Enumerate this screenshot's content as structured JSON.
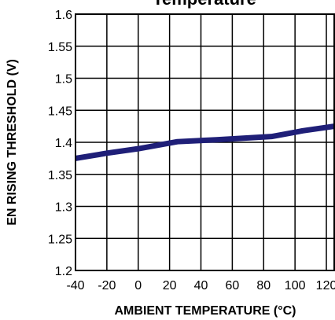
{
  "chart_data": {
    "type": "line",
    "title": "Temperature",
    "xlabel": "AMBIENT TEMPERATURE (°C)",
    "ylabel": "EN RISING THRESHOLD (V)",
    "xlim": [
      -40,
      125
    ],
    "ylim": [
      1.2,
      1.6
    ],
    "x_ticks": [
      -40,
      -20,
      0,
      20,
      40,
      60,
      80,
      100,
      120
    ],
    "y_ticks": [
      1.2,
      1.25,
      1.3,
      1.35,
      1.4,
      1.45,
      1.5,
      1.55,
      1.6
    ],
    "x_tick_labels": [
      "-40",
      "-20",
      "0",
      "20",
      "40",
      "60",
      "80",
      "100",
      "120"
    ],
    "y_tick_labels": [
      "1.2",
      "1.25",
      "1.3",
      "1.35",
      "1.4",
      "1.45",
      "1.5",
      "1.55",
      "1.6"
    ],
    "grid": true,
    "series": [
      {
        "color": "#1f1f78",
        "x": [
          -40,
          -20,
          0,
          25,
          50,
          85,
          105,
          125
        ],
        "y": [
          1.375,
          1.383,
          1.39,
          1.401,
          1.404,
          1.409,
          1.418,
          1.425
        ]
      }
    ]
  }
}
